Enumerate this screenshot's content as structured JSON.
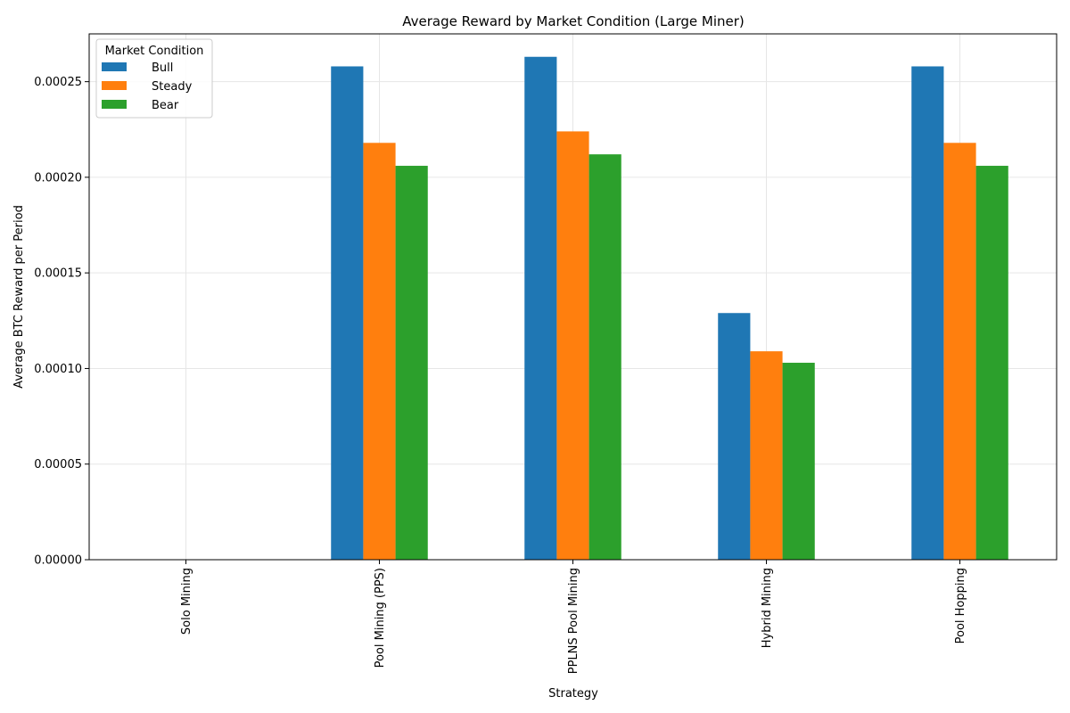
{
  "chart_data": {
    "type": "bar",
    "title": "Average Reward by Market Condition (Large Miner)",
    "xlabel": "Strategy",
    "ylabel": "Average BTC Reward per Period",
    "categories": [
      "Solo Mining",
      "Pool Mining (PPS)",
      "PPLNS Pool Mining",
      "Hybrid Mining",
      "Pool Hopping"
    ],
    "ylim": [
      0,
      0.000275
    ],
    "yticks": [
      "0.00000",
      "0.00005",
      "0.00010",
      "0.00015",
      "0.00020",
      "0.00025"
    ],
    "ytick_values": [
      0,
      5e-05,
      0.0001,
      0.00015,
      0.0002,
      0.00025
    ],
    "legend_title": "Market Condition",
    "legend_position": "top-left",
    "grid": true,
    "series": [
      {
        "name": "Bull",
        "color": "#1f77b4",
        "values": [
          0,
          0.000258,
          0.000263,
          0.000129,
          0.000258
        ]
      },
      {
        "name": "Steady",
        "color": "#ff7f0e",
        "values": [
          0,
          0.000218,
          0.000224,
          0.000109,
          0.000218
        ]
      },
      {
        "name": "Bear",
        "color": "#2ca02c",
        "values": [
          0,
          0.000206,
          0.000212,
          0.000103,
          0.000206
        ]
      }
    ]
  }
}
